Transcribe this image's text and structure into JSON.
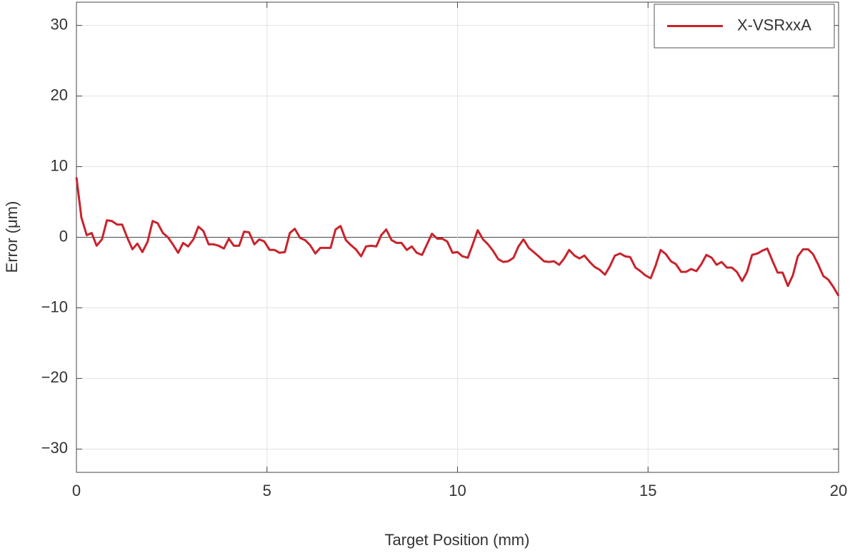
{
  "chart_data": {
    "type": "line",
    "xlabel": "Target Position (mm)",
    "ylabel": "Error (μm)",
    "x": [
      0,
      0.13,
      0.27,
      0.4,
      0.53,
      0.67,
      0.8,
      0.93,
      1.07,
      1.2,
      1.33,
      1.47,
      1.6,
      1.73,
      1.87,
      2,
      2.13,
      2.27,
      2.4,
      2.53,
      2.67,
      2.8,
      2.93,
      3.07,
      3.2,
      3.33,
      3.47,
      3.6,
      3.73,
      3.87,
      4,
      4.13,
      4.27,
      4.4,
      4.53,
      4.67,
      4.8,
      4.93,
      5.07,
      5.2,
      5.33,
      5.47,
      5.6,
      5.73,
      5.87,
      6,
      6.13,
      6.27,
      6.4,
      6.53,
      6.67,
      6.8,
      6.93,
      7.07,
      7.2,
      7.33,
      7.47,
      7.6,
      7.73,
      7.87,
      8,
      8.13,
      8.27,
      8.4,
      8.53,
      8.67,
      8.8,
      8.93,
      9.07,
      9.2,
      9.33,
      9.47,
      9.6,
      9.73,
      9.87,
      10,
      10.13,
      10.27,
      10.4,
      10.53,
      10.67,
      10.8,
      10.93,
      11.07,
      11.2,
      11.33,
      11.47,
      11.6,
      11.73,
      11.87,
      12,
      12.13,
      12.27,
      12.4,
      12.53,
      12.67,
      12.8,
      12.93,
      13.07,
      13.2,
      13.33,
      13.47,
      13.6,
      13.73,
      13.87,
      14,
      14.13,
      14.27,
      14.4,
      14.53,
      14.67,
      14.8,
      14.93,
      15.07,
      15.2,
      15.33,
      15.47,
      15.6,
      15.73,
      15.87,
      16,
      16.13,
      16.27,
      16.4,
      16.53,
      16.67,
      16.8,
      16.93,
      17.07,
      17.2,
      17.33,
      17.47,
      17.6,
      17.73,
      17.87,
      18,
      18.13,
      18.27,
      18.4,
      18.53,
      18.67,
      18.8,
      18.93,
      19.07,
      19.2,
      19.33,
      19.47,
      19.6,
      19.73,
      19.87,
      20
    ],
    "series": [
      {
        "name": "X-VSRxxA",
        "color": "#c8232c",
        "values": [
          8.5,
          2.8,
          0.3,
          0.6,
          -1.2,
          -0.3,
          2.4,
          2.3,
          1.8,
          1.8,
          0,
          -1.7,
          -0.9,
          -2.1,
          -0.6,
          2.3,
          2.0,
          0.6,
          0,
          -1.0,
          -2.2,
          -0.8,
          -1.3,
          -0.3,
          1.5,
          0.9,
          -1.0,
          -1.0,
          -1.2,
          -1.6,
          -0.2,
          -1.2,
          -1.2,
          0.8,
          0.7,
          -1.0,
          -0.3,
          -0.6,
          -1.8,
          -1.8,
          -2.2,
          -2.1,
          0.6,
          1.2,
          -0.1,
          -0.4,
          -1.1,
          -2.3,
          -1.5,
          -1.5,
          -1.5,
          1.1,
          1.6,
          -0.4,
          -1.1,
          -1.7,
          -2.7,
          -1.3,
          -1.2,
          -1.3,
          0.3,
          1.1,
          -0.4,
          -0.8,
          -0.8,
          -1.8,
          -1.3,
          -2.2,
          -2.5,
          -1.0,
          0.5,
          -0.2,
          -0.2,
          -0.6,
          -2.2,
          -2.1,
          -2.7,
          -2.9,
          -1.0,
          1.0,
          -0.3,
          -1.0,
          -1.9,
          -3.1,
          -3.5,
          -3.4,
          -2.9,
          -1.3,
          -0.3,
          -1.5,
          -2.1,
          -2.7,
          -3.4,
          -3.5,
          -3.4,
          -3.9,
          -3.0,
          -1.8,
          -2.6,
          -3.0,
          -2.6,
          -3.5,
          -4.2,
          -4.6,
          -5.3,
          -4.1,
          -2.6,
          -2.3,
          -2.7,
          -2.8,
          -4.3,
          -4.8,
          -5.4,
          -5.8,
          -4.0,
          -1.8,
          -2.4,
          -3.4,
          -3.8,
          -4.9,
          -4.9,
          -4.5,
          -4.8,
          -3.8,
          -2.5,
          -2.9,
          -3.9,
          -3.5,
          -4.3,
          -4.3,
          -4.9,
          -6.2,
          -4.9,
          -2.5,
          -2.3,
          -1.9,
          -1.6,
          -3.4,
          -5.0,
          -5.0,
          -6.9,
          -5.4,
          -2.7,
          -1.7,
          -1.7,
          -2.4,
          -3.9,
          -5.5,
          -6.0,
          -7.1,
          -8.3
        ]
      }
    ],
    "xlim": [
      0,
      20
    ],
    "xticks": [
      0,
      5,
      10,
      15,
      20
    ],
    "ylim": [
      -33.3,
      33.3
    ],
    "yticks": [
      {
        "value": -30,
        "label": "−30"
      },
      {
        "value": -20,
        "label": "−20"
      },
      {
        "value": -10,
        "label": "−10"
      },
      0,
      10,
      20,
      30
    ],
    "grid": true,
    "legend": "upper right"
  }
}
